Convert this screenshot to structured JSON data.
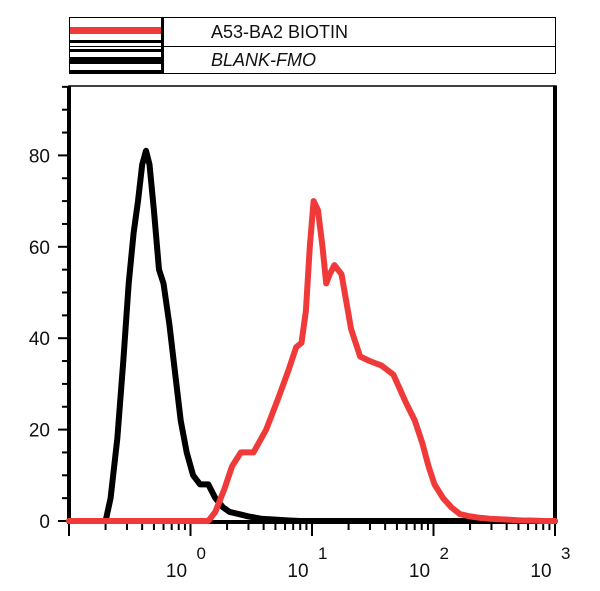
{
  "legend": {
    "items": [
      {
        "label": "A53-BA2 BIOTIN",
        "color": "#f03a3a",
        "style": "normal"
      },
      {
        "label": "BLANK-FMO",
        "color": "#000000",
        "style": "italic"
      }
    ]
  },
  "axes": {
    "y_ticks": [
      "0",
      "20",
      "40",
      "60",
      "80"
    ],
    "x_ticks": [
      {
        "base": "10",
        "exp": "0"
      },
      {
        "base": "10",
        "exp": "1"
      },
      {
        "base": "10",
        "exp": "2"
      },
      {
        "base": "10",
        "exp": "3"
      }
    ]
  },
  "chart_data": {
    "type": "line",
    "title": "",
    "xlabel": "",
    "ylabel": "",
    "xscale": "log",
    "xlim": [
      0.1,
      1000
    ],
    "ylim": [
      0,
      95
    ],
    "x_tick_labels": [
      "10^0",
      "10^1",
      "10^2",
      "10^3"
    ],
    "y_tick_labels": [
      "0",
      "20",
      "40",
      "60",
      "80"
    ],
    "legend_position": "top",
    "grid": false,
    "series": [
      {
        "name": "A53-BA2 BIOTIN",
        "color": "#f03a3a",
        "x": [
          0.1,
          1.4,
          1.6,
          1.9,
          2.2,
          2.6,
          3.3,
          4.2,
          5.3,
          6.4,
          7.4,
          8.2,
          8.9,
          9.6,
          10.3,
          11.2,
          12.2,
          13.1,
          14.0,
          15.3,
          17.5,
          21.0,
          24.9,
          29.8,
          37.4,
          46.9,
          59.0,
          70.1,
          81.0,
          91.0,
          102,
          120,
          140,
          165,
          200,
          240,
          290,
          350,
          410,
          470,
          540,
          630,
          720,
          810,
          900,
          1000
        ],
        "values": [
          0,
          0,
          2,
          7,
          12,
          15,
          15,
          20,
          27,
          33,
          38,
          39,
          46,
          60,
          70,
          68,
          60,
          52,
          54,
          56,
          54,
          42,
          36,
          35,
          34,
          32,
          26,
          22,
          17,
          12,
          8,
          5,
          3,
          1.5,
          1,
          0.7,
          0.5,
          0.4,
          0.3,
          0.2,
          0.1,
          0.1,
          0.05,
          0,
          0,
          0
        ]
      },
      {
        "name": "BLANK-FMO",
        "color": "#000000",
        "x": [
          0.1,
          0.2,
          0.22,
          0.25,
          0.28,
          0.31,
          0.34,
          0.37,
          0.4,
          0.43,
          0.46,
          0.5,
          0.55,
          0.6,
          0.67,
          0.75,
          0.83,
          0.93,
          1.05,
          1.2,
          1.4,
          1.6,
          1.85,
          2.1,
          2.5,
          3.0,
          3.8,
          5.0,
          6.5,
          8.0,
          1000
        ],
        "values": [
          0,
          0,
          5,
          18,
          35,
          52,
          63,
          70,
          78,
          81,
          78,
          68,
          55,
          52,
          43,
          32,
          22,
          15,
          10,
          8,
          8,
          5,
          3,
          2,
          1.5,
          1,
          0.5,
          0.3,
          0.1,
          0,
          0
        ]
      }
    ]
  }
}
